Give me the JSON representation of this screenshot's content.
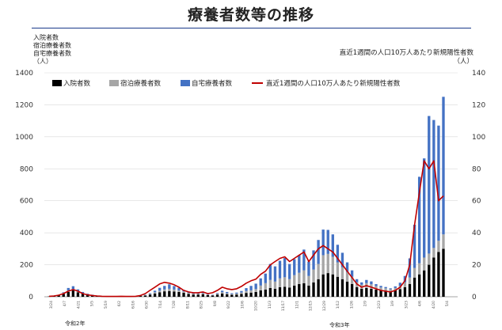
{
  "title": "療養者数等の推移",
  "left_axis_label": [
    "入院者数",
    "宿泊療養者数",
    "自宅療養者数",
    "（人）"
  ],
  "right_axis_label": [
    "直近1週間の人口10万人あたり新規陽性者数",
    "（人）"
  ],
  "era_labels": [
    "令和2年",
    "令和3年"
  ],
  "colors": {
    "hospital": "#000000",
    "hotel": "#a6a6a6",
    "home": "#4472c4",
    "line": "#c00000"
  },
  "chart_data": {
    "type": "bar",
    "stacked": true,
    "ylim_left": [
      0,
      1400
    ],
    "yticks_left": [
      "0",
      "200",
      "400",
      "600",
      "800",
      "1000",
      "1200",
      "1400"
    ],
    "ylim_right": [
      0,
      140
    ],
    "yticks_right": [
      "0",
      "20",
      "40",
      "60",
      "80",
      "100",
      "120",
      "140"
    ],
    "legend_position": "top",
    "x_tick_labels": [
      "3/24",
      "4/7",
      "4/21",
      "5/5",
      "5/19",
      "6/2",
      "6/16",
      "6/30",
      "7/14",
      "7/28",
      "8/11",
      "8/25",
      "9/8",
      "9/22",
      "10/6",
      "10/20",
      "11/3",
      "11/17",
      "12/1",
      "12/15",
      "12/29",
      "1/12",
      "1/26",
      "2/9",
      "2/23",
      "3/9",
      "3/23",
      "4/6",
      "4/20",
      "5/4"
    ],
    "series": [
      {
        "name": "入院者数",
        "values": [
          2,
          3,
          8,
          18,
          30,
          40,
          28,
          20,
          14,
          10,
          6,
          4,
          3,
          2,
          2,
          3,
          2,
          2,
          3,
          5,
          8,
          14,
          20,
          28,
          34,
          36,
          33,
          30,
          25,
          18,
          14,
          14,
          16,
          10,
          8,
          14,
          20,
          16,
          12,
          14,
          18,
          24,
          26,
          30,
          40,
          45,
          55,
          50,
          60,
          62,
          58,
          70,
          80,
          85,
          70,
          90,
          110,
          140,
          148,
          140,
          125,
          110,
          95,
          80,
          60,
          50,
          55,
          50,
          45,
          40,
          38,
          35,
          40,
          48,
          60,
          80,
          120,
          140,
          165,
          200,
          245,
          280,
          300
        ]
      },
      {
        "name": "宿泊療養者数",
        "values": [
          0,
          0,
          2,
          6,
          10,
          6,
          4,
          2,
          1,
          1,
          0,
          0,
          0,
          0,
          0,
          0,
          0,
          0,
          0,
          1,
          2,
          4,
          8,
          10,
          12,
          14,
          12,
          10,
          8,
          6,
          5,
          5,
          6,
          4,
          3,
          5,
          8,
          6,
          5,
          6,
          8,
          12,
          14,
          18,
          30,
          40,
          50,
          45,
          55,
          60,
          52,
          65,
          70,
          80,
          60,
          80,
          95,
          120,
          120,
          110,
          90,
          75,
          60,
          45,
          30,
          25,
          30,
          28,
          22,
          18,
          15,
          12,
          15,
          20,
          30,
          40,
          60,
          70,
          80,
          70,
          60,
          70,
          90
        ]
      },
      {
        "name": "自宅療養者数",
        "values": [
          0,
          0,
          0,
          4,
          15,
          20,
          14,
          8,
          4,
          2,
          1,
          0,
          0,
          0,
          0,
          0,
          0,
          0,
          0,
          1,
          2,
          4,
          10,
          18,
          22,
          28,
          22,
          16,
          10,
          6,
          4,
          4,
          5,
          3,
          2,
          4,
          10,
          8,
          5,
          6,
          10,
          18,
          28,
          34,
          45,
          60,
          100,
          95,
          110,
          120,
          95,
          100,
          110,
          130,
          90,
          120,
          150,
          160,
          150,
          140,
          110,
          90,
          60,
          40,
          20,
          15,
          20,
          18,
          12,
          10,
          8,
          6,
          10,
          20,
          40,
          120,
          270,
          540,
          620,
          860,
          800,
          720,
          860
        ]
      }
    ],
    "line_series": {
      "name": "直近1週間の人口10万人あたり新規陽性者数",
      "values": [
        0.3,
        0.5,
        1.0,
        2.0,
        3.5,
        4.5,
        3.5,
        2.0,
        1.2,
        0.8,
        0.5,
        0.3,
        0.2,
        0.2,
        0.2,
        0.3,
        0.2,
        0.2,
        0.3,
        0.8,
        2.0,
        4.0,
        6.0,
        8.0,
        9.0,
        8.5,
        7.5,
        6.0,
        4.0,
        3.0,
        2.5,
        2.5,
        3.0,
        2.0,
        2.5,
        4.0,
        6.0,
        5.0,
        4.5,
        5.0,
        6.5,
        8.5,
        10.0,
        11.0,
        14.0,
        16.0,
        20.0,
        22.0,
        24.0,
        25.0,
        22.0,
        24.0,
        26.0,
        28.0,
        22.0,
        26.0,
        30.0,
        32.0,
        30.0,
        28.0,
        24.0,
        20.0,
        16.0,
        12.0,
        8.0,
        6.0,
        7.0,
        6.0,
        5.0,
        4.0,
        3.5,
        3.0,
        4.0,
        6.0,
        10.0,
        20.0,
        45.0,
        65.0,
        85.0,
        80.0,
        85.0,
        60.0,
        63.0
      ]
    }
  }
}
